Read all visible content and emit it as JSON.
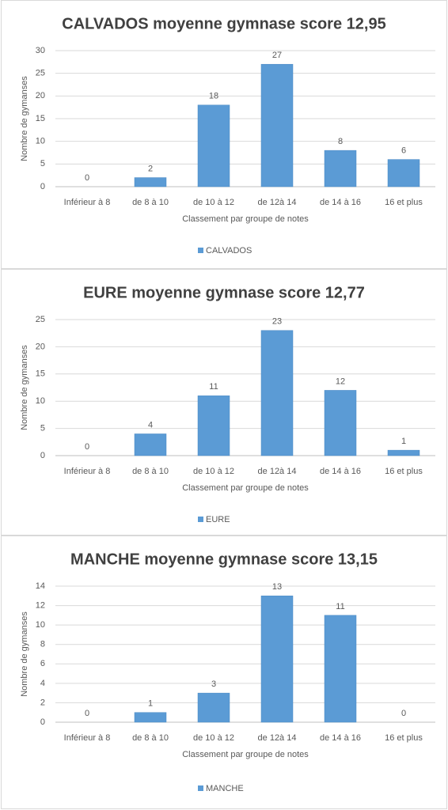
{
  "chart_data": [
    {
      "type": "bar",
      "title": "CALVADOS moyenne gymnase score 12,95",
      "ylabel": "Nombre de gymanses",
      "xlabel": "Classement par groupe de notes",
      "categories": [
        "Inférieur à 8",
        "de 8 à 10",
        "de 10 à 12",
        "de 12à 14",
        "de 14 à 16",
        "16 et plus"
      ],
      "series": [
        {
          "name": "CALVADOS",
          "color": "#5b9bd5",
          "values": [
            0,
            2,
            18,
            27,
            8,
            6
          ]
        }
      ],
      "ylim": [
        0,
        30
      ],
      "yticks": [
        0,
        5,
        10,
        15,
        20,
        25,
        30
      ],
      "grid": true
    },
    {
      "type": "bar",
      "title": "EURE moyenne gymnase score 12,77",
      "ylabel": "Nombre de gymanses",
      "xlabel": "Classement par groupe de notes",
      "categories": [
        "Inférieur à 8",
        "de 8 à 10",
        "de 10 à 12",
        "de 12à 14",
        "de 14 à 16",
        "16 et plus"
      ],
      "series": [
        {
          "name": "EURE",
          "color": "#5b9bd5",
          "values": [
            0,
            4,
            11,
            23,
            12,
            1
          ]
        }
      ],
      "ylim": [
        0,
        25
      ],
      "yticks": [
        0,
        5,
        10,
        15,
        20,
        25
      ],
      "grid": true
    },
    {
      "type": "bar",
      "title": "MANCHE moyenne gymnase score 13,15",
      "ylabel": "Nombre de gymanses",
      "xlabel": "Classement par groupe de notes",
      "categories": [
        "Inférieur à 8",
        "de 8 à 10",
        "de 10 à 12",
        "de 12à 14",
        "de 14 à 16",
        "16 et plus"
      ],
      "series": [
        {
          "name": "MANCHE",
          "color": "#5b9bd5",
          "values": [
            0,
            1,
            3,
            13,
            11,
            0
          ]
        }
      ],
      "ylim": [
        0,
        14
      ],
      "yticks": [
        0,
        2,
        4,
        6,
        8,
        10,
        12,
        14
      ],
      "grid": true
    }
  ]
}
